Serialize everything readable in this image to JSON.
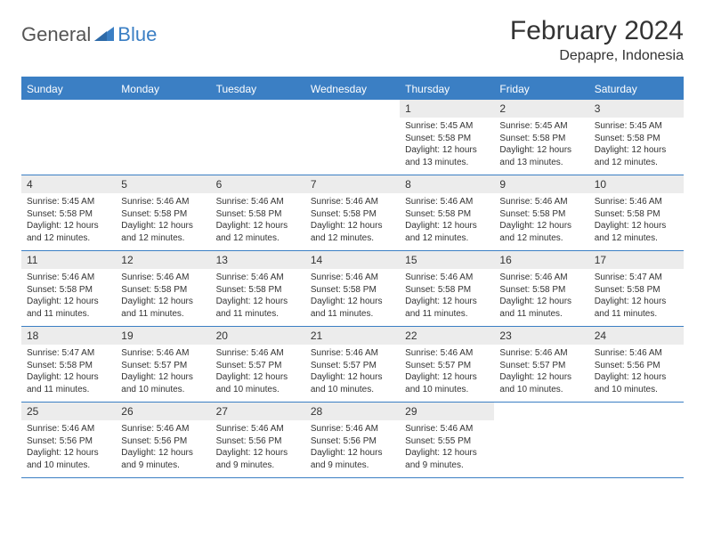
{
  "logo": {
    "part1": "General",
    "part2": "Blue"
  },
  "title": "February 2024",
  "location": "Depapre, Indonesia",
  "weekdays": [
    "Sunday",
    "Monday",
    "Tuesday",
    "Wednesday",
    "Thursday",
    "Friday",
    "Saturday"
  ],
  "colors": {
    "accent": "#3b7fc4",
    "daynum_bg": "#ececec",
    "text": "#333333"
  },
  "weeks": [
    [
      {
        "empty": true
      },
      {
        "empty": true
      },
      {
        "empty": true
      },
      {
        "empty": true
      },
      {
        "n": "1",
        "sr": "Sunrise: 5:45 AM",
        "ss": "Sunset: 5:58 PM",
        "dl": "Daylight: 12 hours and 13 minutes."
      },
      {
        "n": "2",
        "sr": "Sunrise: 5:45 AM",
        "ss": "Sunset: 5:58 PM",
        "dl": "Daylight: 12 hours and 13 minutes."
      },
      {
        "n": "3",
        "sr": "Sunrise: 5:45 AM",
        "ss": "Sunset: 5:58 PM",
        "dl": "Daylight: 12 hours and 12 minutes."
      }
    ],
    [
      {
        "n": "4",
        "sr": "Sunrise: 5:45 AM",
        "ss": "Sunset: 5:58 PM",
        "dl": "Daylight: 12 hours and 12 minutes."
      },
      {
        "n": "5",
        "sr": "Sunrise: 5:46 AM",
        "ss": "Sunset: 5:58 PM",
        "dl": "Daylight: 12 hours and 12 minutes."
      },
      {
        "n": "6",
        "sr": "Sunrise: 5:46 AM",
        "ss": "Sunset: 5:58 PM",
        "dl": "Daylight: 12 hours and 12 minutes."
      },
      {
        "n": "7",
        "sr": "Sunrise: 5:46 AM",
        "ss": "Sunset: 5:58 PM",
        "dl": "Daylight: 12 hours and 12 minutes."
      },
      {
        "n": "8",
        "sr": "Sunrise: 5:46 AM",
        "ss": "Sunset: 5:58 PM",
        "dl": "Daylight: 12 hours and 12 minutes."
      },
      {
        "n": "9",
        "sr": "Sunrise: 5:46 AM",
        "ss": "Sunset: 5:58 PM",
        "dl": "Daylight: 12 hours and 12 minutes."
      },
      {
        "n": "10",
        "sr": "Sunrise: 5:46 AM",
        "ss": "Sunset: 5:58 PM",
        "dl": "Daylight: 12 hours and 12 minutes."
      }
    ],
    [
      {
        "n": "11",
        "sr": "Sunrise: 5:46 AM",
        "ss": "Sunset: 5:58 PM",
        "dl": "Daylight: 12 hours and 11 minutes."
      },
      {
        "n": "12",
        "sr": "Sunrise: 5:46 AM",
        "ss": "Sunset: 5:58 PM",
        "dl": "Daylight: 12 hours and 11 minutes."
      },
      {
        "n": "13",
        "sr": "Sunrise: 5:46 AM",
        "ss": "Sunset: 5:58 PM",
        "dl": "Daylight: 12 hours and 11 minutes."
      },
      {
        "n": "14",
        "sr": "Sunrise: 5:46 AM",
        "ss": "Sunset: 5:58 PM",
        "dl": "Daylight: 12 hours and 11 minutes."
      },
      {
        "n": "15",
        "sr": "Sunrise: 5:46 AM",
        "ss": "Sunset: 5:58 PM",
        "dl": "Daylight: 12 hours and 11 minutes."
      },
      {
        "n": "16",
        "sr": "Sunrise: 5:46 AM",
        "ss": "Sunset: 5:58 PM",
        "dl": "Daylight: 12 hours and 11 minutes."
      },
      {
        "n": "17",
        "sr": "Sunrise: 5:47 AM",
        "ss": "Sunset: 5:58 PM",
        "dl": "Daylight: 12 hours and 11 minutes."
      }
    ],
    [
      {
        "n": "18",
        "sr": "Sunrise: 5:47 AM",
        "ss": "Sunset: 5:58 PM",
        "dl": "Daylight: 12 hours and 11 minutes."
      },
      {
        "n": "19",
        "sr": "Sunrise: 5:46 AM",
        "ss": "Sunset: 5:57 PM",
        "dl": "Daylight: 12 hours and 10 minutes."
      },
      {
        "n": "20",
        "sr": "Sunrise: 5:46 AM",
        "ss": "Sunset: 5:57 PM",
        "dl": "Daylight: 12 hours and 10 minutes."
      },
      {
        "n": "21",
        "sr": "Sunrise: 5:46 AM",
        "ss": "Sunset: 5:57 PM",
        "dl": "Daylight: 12 hours and 10 minutes."
      },
      {
        "n": "22",
        "sr": "Sunrise: 5:46 AM",
        "ss": "Sunset: 5:57 PM",
        "dl": "Daylight: 12 hours and 10 minutes."
      },
      {
        "n": "23",
        "sr": "Sunrise: 5:46 AM",
        "ss": "Sunset: 5:57 PM",
        "dl": "Daylight: 12 hours and 10 minutes."
      },
      {
        "n": "24",
        "sr": "Sunrise: 5:46 AM",
        "ss": "Sunset: 5:56 PM",
        "dl": "Daylight: 12 hours and 10 minutes."
      }
    ],
    [
      {
        "n": "25",
        "sr": "Sunrise: 5:46 AM",
        "ss": "Sunset: 5:56 PM",
        "dl": "Daylight: 12 hours and 10 minutes."
      },
      {
        "n": "26",
        "sr": "Sunrise: 5:46 AM",
        "ss": "Sunset: 5:56 PM",
        "dl": "Daylight: 12 hours and 9 minutes."
      },
      {
        "n": "27",
        "sr": "Sunrise: 5:46 AM",
        "ss": "Sunset: 5:56 PM",
        "dl": "Daylight: 12 hours and 9 minutes."
      },
      {
        "n": "28",
        "sr": "Sunrise: 5:46 AM",
        "ss": "Sunset: 5:56 PM",
        "dl": "Daylight: 12 hours and 9 minutes."
      },
      {
        "n": "29",
        "sr": "Sunrise: 5:46 AM",
        "ss": "Sunset: 5:55 PM",
        "dl": "Daylight: 12 hours and 9 minutes."
      },
      {
        "empty": true
      },
      {
        "empty": true
      }
    ]
  ]
}
